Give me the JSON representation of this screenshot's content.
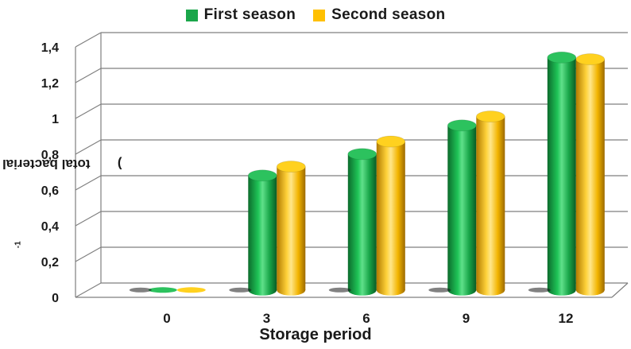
{
  "chart_data": {
    "type": "bar",
    "style": "3d-cylinder",
    "xlabel": "Storage period",
    "ylabel_main": "total bacterial count (cfu/g",
    "ylabel_sup": "-1",
    "ylabel_close": ")",
    "categories": [
      "0",
      "3",
      "6",
      "9",
      "12"
    ],
    "series": [
      {
        "name": "First season",
        "color": "#1aa64a",
        "values": [
          0,
          0.64,
          0.76,
          0.92,
          1.3
        ]
      },
      {
        "name": "Second season",
        "color": "#ffc000",
        "values": [
          0,
          0.69,
          0.83,
          0.97,
          1.29
        ]
      }
    ],
    "ylim": [
      0,
      1.4
    ],
    "yticks": [
      "0",
      "0,2",
      "0,4",
      "0,6",
      "0,8",
      "1",
      "1,2",
      "1,4"
    ],
    "grid": true,
    "legend": "top-center"
  }
}
